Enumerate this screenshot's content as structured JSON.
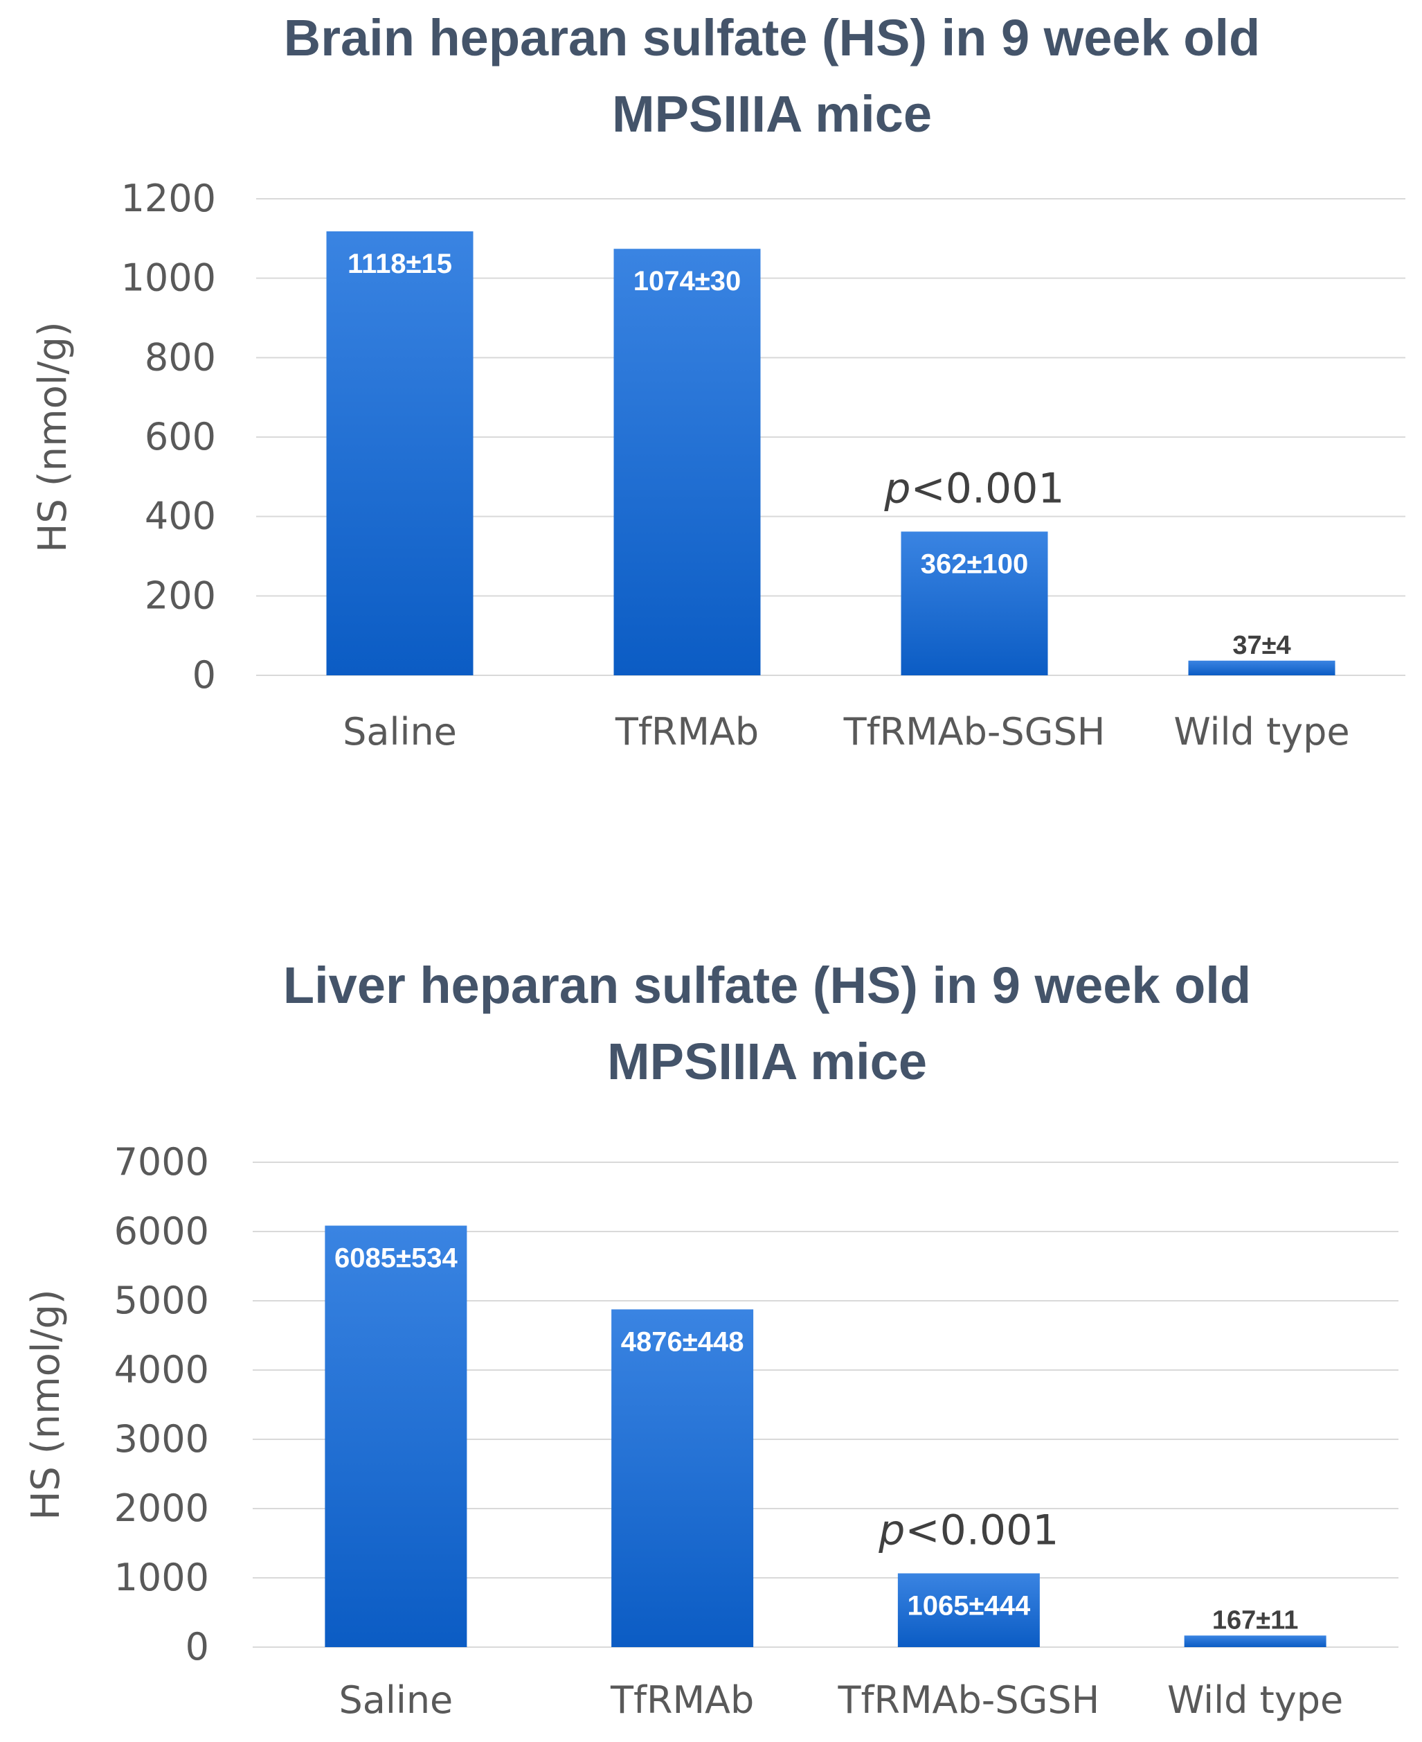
{
  "chart_data": [
    {
      "type": "bar",
      "title_lines": [
        "Brain heparan sulfate (HS) in 9 week old",
        "MPSIIIA mice"
      ],
      "ylabel": "HS (nmol/g)",
      "xlabel": "",
      "ylim": [
        0,
        1200
      ],
      "yticks": [
        0,
        200,
        400,
        600,
        800,
        1000,
        1200
      ],
      "grid": true,
      "categories": [
        "Saline",
        "TfRMAb",
        "TfRMAb-SGSH",
        "Wild type"
      ],
      "values": [
        1118,
        1074,
        362,
        37
      ],
      "data_labels": [
        "1118±15",
        "1074±30",
        "362±100",
        "37±4"
      ],
      "annotation": {
        "prefix": "p",
        "suffix": "<0.001",
        "category": "TfRMAb-SGSH"
      },
      "bar_color": "#1f6fd1"
    },
    {
      "type": "bar",
      "title_lines": [
        "Liver heparan sulfate (HS) in 9 week old",
        "MPSIIIA mice"
      ],
      "ylabel": "HS (nmol/g)",
      "xlabel": "",
      "ylim": [
        0,
        7000
      ],
      "yticks": [
        0,
        1000,
        2000,
        3000,
        4000,
        5000,
        6000,
        7000
      ],
      "grid": true,
      "categories": [
        "Saline",
        "TfRMAb",
        "TfRMAb-SGSH",
        "Wild type"
      ],
      "values": [
        6085,
        4876,
        1065,
        167
      ],
      "data_labels": [
        "6085±534",
        "4876±448",
        "1065±444",
        "167±11"
      ],
      "annotation": {
        "prefix": "p",
        "suffix": "<0.001",
        "category": "TfRMAb-SGSH"
      },
      "bar_color": "#1f6fd1"
    }
  ]
}
